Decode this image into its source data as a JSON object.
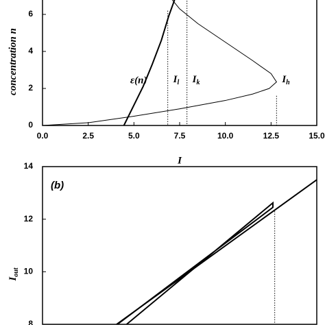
{
  "chart_data": [
    {
      "type": "line",
      "xlabel": "I",
      "ylabel": "concentration n",
      "xlim": [
        0,
        15
      ],
      "ylim": [
        0,
        7
      ],
      "xticks": [
        {
          "value": 0,
          "label": "0.0"
        },
        {
          "value": 2.5,
          "label": "2.5"
        },
        {
          "value": 5,
          "label": "5.0"
        },
        {
          "value": 7.5,
          "label": "7.5"
        },
        {
          "value": 10,
          "label": "10.0"
        },
        {
          "value": 12.5,
          "label": "12.5"
        },
        {
          "value": 15,
          "label": "15.0"
        }
      ],
      "yticks": [
        0,
        2,
        4,
        6
      ],
      "series": [
        {
          "color": "#000",
          "linewidth": 1,
          "x": [
            0,
            2.5,
            5,
            7.5,
            10,
            11.5,
            12.4,
            12.8,
            12.5,
            11.5,
            10,
            8.5,
            7.5,
            7
          ],
          "values": [
            0,
            0.15,
            0.5,
            0.9,
            1.35,
            1.7,
            2.0,
            2.35,
            2.8,
            3.5,
            4.5,
            5.5,
            6.3,
            6.9
          ]
        },
        {
          "name": "ε(n)",
          "color": "#000",
          "linewidth": 2,
          "x": [
            4.45,
            5.0,
            5.5,
            6.0,
            6.5,
            6.9,
            7.3
          ],
          "values": [
            0,
            1.1,
            2.1,
            3.3,
            4.6,
            5.9,
            7.0
          ]
        }
      ],
      "markers": [
        {
          "x": 6.85,
          "y": 6.2,
          "label": "I",
          "sub": "l"
        },
        {
          "x": 7.9,
          "y": 7.0,
          "label": "I",
          "sub": "k"
        },
        {
          "x": 12.8,
          "y": 1.6,
          "label": "I",
          "sub": "h"
        }
      ]
    },
    {
      "type": "line",
      "label": "(b)",
      "ylabel": "I",
      "ylabel_sub": "out",
      "xlim": [
        0,
        15
      ],
      "ylim": [
        8,
        14
      ],
      "yticks": [
        8,
        10,
        12,
        14
      ],
      "series": [
        {
          "color": "#000",
          "linewidth": 2,
          "x": [
            4.05,
            15
          ],
          "values": [
            8,
            13.5
          ]
        },
        {
          "color": "#000",
          "linewidth": 2,
          "x": [
            4.6,
            12.6,
            12.6,
            4.1
          ],
          "values": [
            8,
            12.62,
            12.45,
            8
          ]
        }
      ],
      "markers": [
        {
          "x": 12.7,
          "y": 12.3
        }
      ]
    }
  ]
}
